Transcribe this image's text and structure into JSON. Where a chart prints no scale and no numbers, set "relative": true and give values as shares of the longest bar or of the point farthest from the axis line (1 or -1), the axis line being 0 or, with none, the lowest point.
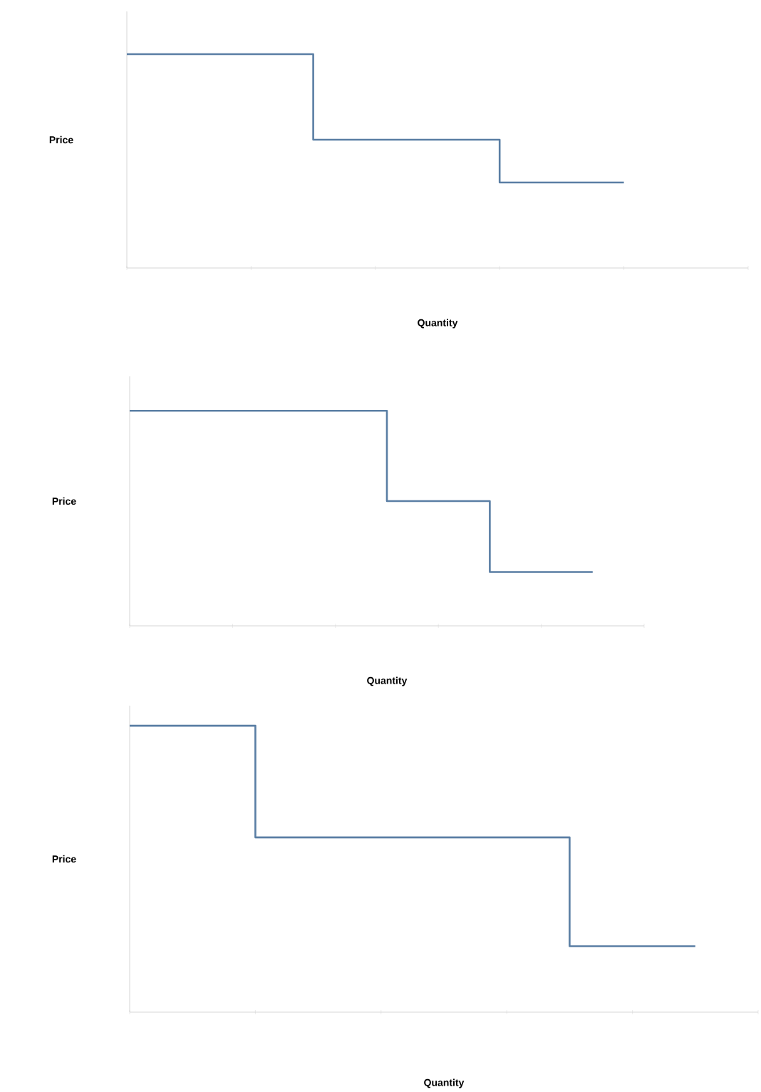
{
  "chart_data": [
    {
      "type": "step",
      "relative": true,
      "xlabel": "Quantity",
      "ylabel": "Price",
      "categories": [
        null,
        null,
        null,
        null,
        null,
        null,
        null,
        null,
        null,
        null,
        null
      ],
      "values": [
        1,
        1,
        1,
        0.6,
        0.6,
        0.6,
        0.4,
        0.4,
        0.4,
        null,
        null
      ],
      "color": "#5a7ea4"
    },
    {
      "type": "step",
      "relative": true,
      "xlabel": "Quantity",
      "ylabel": "Price",
      "categories": [
        null,
        null,
        null,
        null,
        null,
        null,
        null,
        null,
        null,
        null,
        null
      ],
      "values": [
        1,
        1,
        1,
        1,
        1,
        0.58,
        0.58,
        0.25,
        0.25,
        0.25,
        null
      ],
      "color": "#5a7ea4"
    },
    {
      "type": "step",
      "relative": true,
      "xlabel": "Quantity",
      "ylabel": "Price",
      "categories": [
        null,
        null,
        null,
        null,
        null,
        null,
        null,
        null,
        null,
        null,
        null
      ],
      "values": [
        1,
        1,
        0.61,
        0.61,
        0.61,
        0.61,
        0.61,
        0.23,
        0.23,
        0.23,
        null
      ],
      "color": "#5a7ea4"
    }
  ]
}
